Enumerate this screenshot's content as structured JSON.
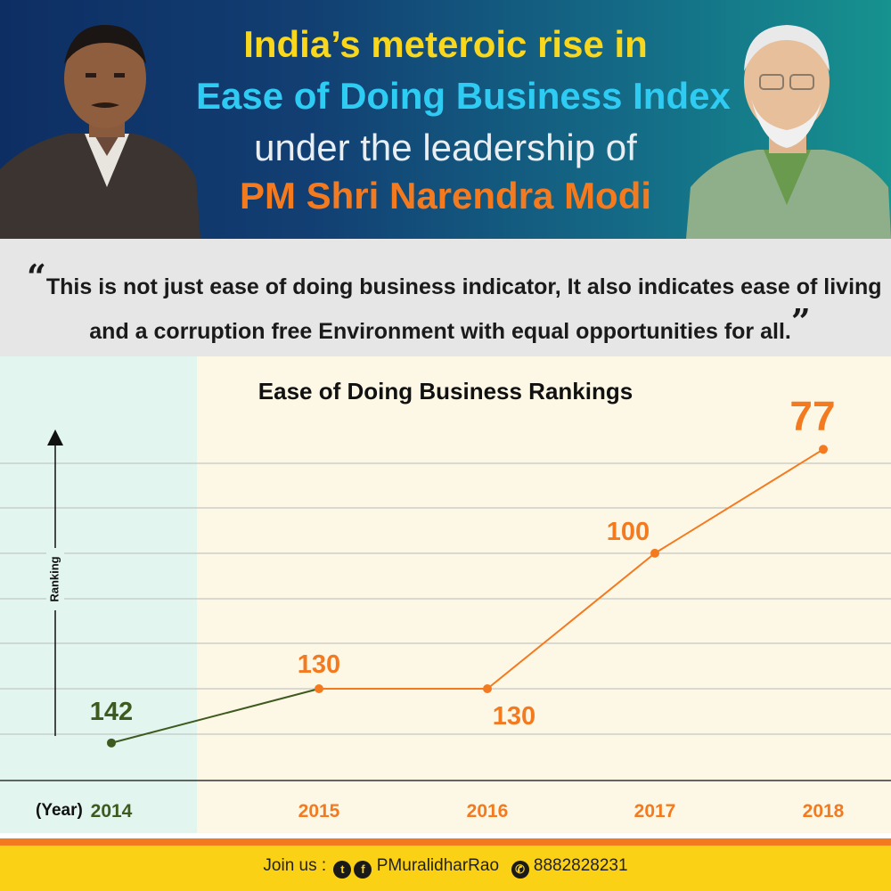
{
  "header": {
    "line1": "India’s meteroic rise in",
    "line2": "Ease of Doing Business Index",
    "line3": "under the leadership of",
    "line4": "PM Shri Narendra Modi"
  },
  "quote": {
    "open_mark": "“",
    "line1": "This is not just ease of doing business indicator, It also indicates ease of living",
    "line2": "and a corruption free Environment with equal opportunities for all.",
    "close_mark": "”"
  },
  "chart_data": {
    "type": "line",
    "title": "Ease of Doing Business Rankings",
    "xlabel": "(Year)",
    "ylabel": "Ranking",
    "categories": [
      "2014",
      "2015",
      "2016",
      "2017",
      "2018"
    ],
    "values": [
      142,
      130,
      130,
      100,
      77
    ],
    "data_labels": [
      "142",
      "130",
      "130",
      "100",
      "77"
    ],
    "y_axis_inverted": true,
    "grid": true,
    "colors": {
      "first_segment": "#3f5a1f",
      "main": "#f47a20"
    }
  },
  "footer": {
    "join_label": "Join us",
    "separator": ":",
    "handle": "PMuralidharRao",
    "phone": "8882828231"
  },
  "icons": {
    "twitter": "twitter-icon",
    "facebook": "facebook-icon",
    "whatsapp": "whatsapp-icon"
  }
}
